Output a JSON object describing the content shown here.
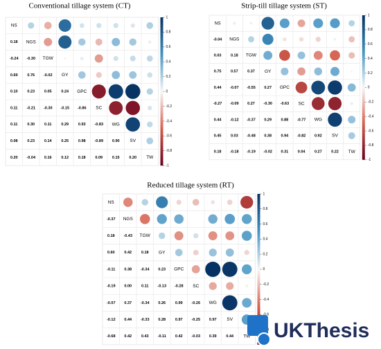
{
  "chart_data": [
    {
      "type": "corrplot",
      "title": "Conventional tillage system (CT)",
      "variables": [
        "NS",
        "NGS",
        "TGW",
        "GY",
        "GPC",
        "SC",
        "WG",
        "SV",
        "TW"
      ],
      "values": [
        [],
        [
          0.18
        ],
        [
          -0.24,
          -0.3
        ],
        [
          0.69,
          0.76,
          -0.02
        ],
        [
          0.1,
          0.23,
          0.05,
          0.24
        ],
        [
          0.11,
          -0.21,
          -0.3,
          -0.15,
          -0.86
        ],
        [
          0.11,
          0.3,
          0.11,
          0.29,
          0.93,
          -0.83
        ],
        [
          0.08,
          0.23,
          0.14,
          0.25,
          0.98,
          -0.89,
          0.9
        ],
        [
          0.2,
          -0.04,
          0.16,
          0.12,
          0.18,
          0.09,
          0.15,
          0.2
        ]
      ],
      "value_labels": [
        [],
        [
          "0.18"
        ],
        [
          "-0.24",
          "-0.30"
        ],
        [
          "0.69",
          "0.76",
          "-0.02"
        ],
        [
          "0.10",
          "0.23",
          "0.05",
          "0.24"
        ],
        [
          "0.11",
          "-0.21",
          "-0.30",
          "-0.15",
          "-0.86"
        ],
        [
          "0.11",
          "0.30",
          "0.11",
          "0.29",
          "0.93",
          "-0.83"
        ],
        [
          "0.08",
          "0.23",
          "0.14",
          "0.25",
          "0.98",
          "-0.89",
          "0.90"
        ],
        [
          "0.20",
          "-0.04",
          "0.16",
          "0.12",
          "0.18",
          "0.09",
          "0.15",
          "0.20"
        ]
      ],
      "clim": [
        -1,
        1
      ],
      "colorbar_ticks": [
        1,
        0.8,
        0.6,
        0.4,
        0.2,
        0,
        -0.2,
        -0.4,
        -0.6,
        -0.8,
        -1
      ]
    },
    {
      "type": "corrplot",
      "title": "Strip-till tillage system (ST)",
      "variables": [
        "NS",
        "NGS",
        "TGW",
        "GY",
        "GPC",
        "SC",
        "WG",
        "SV",
        "TW"
      ],
      "values": [
        [],
        [
          -0.04
        ],
        [
          0.03,
          0.18
        ],
        [
          0.75,
          0.57,
          0.37
        ],
        [
          0.44,
          -0.07,
          -0.55,
          0.27
        ],
        [
          -0.27,
          -0.09,
          0.27,
          -0.3,
          -0.63
        ],
        [
          0.44,
          -0.12,
          -0.37,
          0.29,
          0.88,
          -0.77
        ],
        [
          0.45,
          0.03,
          -0.48,
          0.38,
          0.94,
          -0.82,
          0.92
        ],
        [
          0.18,
          -0.18,
          -0.19,
          -0.02,
          0.31,
          0.04,
          0.27,
          0.22
        ]
      ],
      "value_labels": [
        [],
        [
          "-0.04"
        ],
        [
          "0.03",
          "0.18"
        ],
        [
          "0.75",
          "0.57",
          "0.37"
        ],
        [
          "0.44",
          "-0.07",
          "-0.55",
          "0.27"
        ],
        [
          "-0.27",
          "-0.09",
          "0.27",
          "-0.30",
          "-0.63"
        ],
        [
          "0.44",
          "-0.12",
          "-0.37",
          "0.29",
          "0.88",
          "-0.77"
        ],
        [
          "0.45",
          "0.03",
          "-0.48",
          "0.38",
          "0.94",
          "-0.82",
          "0.92"
        ],
        [
          "0.18",
          "-0.18",
          "-0.19",
          "-0.02",
          "0.31",
          "0.04",
          "0.27",
          "0.22"
        ]
      ],
      "clim": [
        -1,
        1
      ],
      "colorbar_ticks": [
        1,
        0.8,
        0.6,
        0.4,
        0.2,
        0,
        -0.2,
        -0.4,
        -0.6,
        -0.8,
        -1
      ]
    },
    {
      "type": "corrplot",
      "title": "Reduced tillage system (RT)",
      "variables": [
        "NS",
        "NGS",
        "TGW",
        "GY",
        "GPC",
        "SC",
        "WG",
        "SV",
        "TW"
      ],
      "values": [
        [],
        [
          -0.37
        ],
        [
          0.18,
          -0.43
        ],
        [
          0.6,
          0.42,
          0.18
        ],
        [
          -0.11,
          0.38,
          -0.34,
          0.23
        ],
        [
          -0.19,
          0.0,
          0.11,
          -0.13,
          -0.28
        ],
        [
          -0.07,
          0.37,
          -0.34,
          0.26,
          0.99,
          -0.26
        ],
        [
          -0.12,
          0.44,
          -0.33,
          0.28,
          0.97,
          -0.25,
          0.97
        ],
        [
          -0.68,
          0.42,
          0.43,
          -0.11,
          0.42,
          -0.03,
          0.39,
          0.44
        ]
      ],
      "value_labels": [
        [],
        [
          "-0.37"
        ],
        [
          "0.18",
          "-0.43"
        ],
        [
          "0.60",
          "0.42",
          "0.18"
        ],
        [
          "-0.11",
          "0.38",
          "-0.34",
          "0.23"
        ],
        [
          "-0.19",
          "0.00",
          "0.11",
          "-0.13",
          "-0.28"
        ],
        [
          "-0.07",
          "0.37",
          "-0.34",
          "0.26",
          "0.99",
          "-0.26"
        ],
        [
          "-0.12",
          "0.44",
          "-0.33",
          "0.28",
          "0.97",
          "-0.25",
          "0.97"
        ],
        [
          "-0.68",
          "0.42",
          "0.43",
          "-0.11",
          "0.42",
          "-0.03",
          "0.39",
          "0.44"
        ]
      ],
      "clim": [
        -1,
        1
      ],
      "colorbar_ticks": [
        1,
        0.8,
        0.6,
        0.4,
        0.2,
        0,
        -0.2,
        -0.4,
        -0.6,
        -0.8,
        -1
      ]
    }
  ],
  "watermark": "UKThesis"
}
